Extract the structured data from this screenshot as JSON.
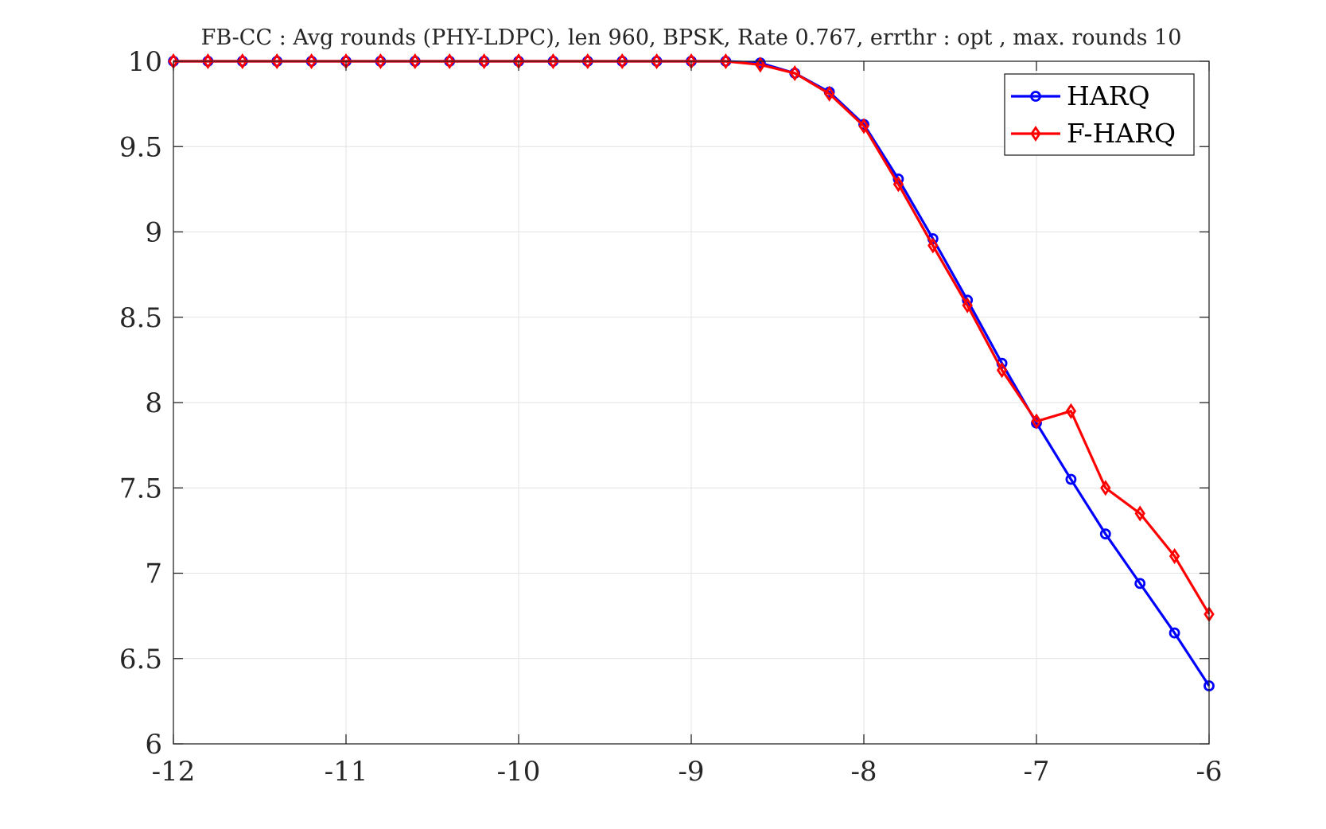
{
  "chart_data": {
    "type": "line",
    "title": "FB-CC : Avg rounds (PHY-LDPC), len 960, BPSK, Rate 0.767, errthr : opt , max. rounds 10",
    "xlabel": "",
    "ylabel": "",
    "xlim": [
      -12,
      -6
    ],
    "ylim": [
      6,
      10
    ],
    "xticks": [
      -12,
      -11,
      -10,
      -9,
      -8,
      -7,
      -6
    ],
    "xtick_labels": [
      "-12",
      "-11",
      "-10",
      "-9",
      "-8",
      "-7",
      "-6"
    ],
    "yticks": [
      6,
      6.5,
      7,
      7.5,
      8,
      8.5,
      9,
      9.5,
      10
    ],
    "ytick_labels": [
      "6",
      "6.5",
      "7",
      "7.5",
      "8",
      "8.5",
      "9",
      "9.5",
      "10"
    ],
    "grid": true,
    "legend_position": "top-right",
    "x": [
      -12,
      -11.8,
      -11.6,
      -11.4,
      -11.2,
      -11,
      -10.8,
      -10.6,
      -10.4,
      -10.2,
      -10,
      -9.8,
      -9.6,
      -9.4,
      -9.2,
      -9,
      -8.8,
      -8.6,
      -8.4,
      -8.2,
      -8,
      -7.8,
      -7.6,
      -7.4,
      -7.2,
      -7,
      -6.8,
      -6.6,
      -6.4,
      -6.2,
      -6
    ],
    "series": [
      {
        "name": "HARQ",
        "color": "#0000ff",
        "marker": "circle",
        "values": [
          10,
          10,
          10,
          10,
          10,
          10,
          10,
          10,
          10,
          10,
          10,
          10,
          10,
          10,
          10,
          10,
          10,
          9.99,
          9.93,
          9.82,
          9.63,
          9.31,
          8.96,
          8.6,
          8.23,
          7.88,
          7.55,
          7.23,
          6.94,
          6.65,
          6.34
        ]
      },
      {
        "name": "F-HARQ",
        "color": "#ff0000",
        "marker": "diamond",
        "values": [
          10,
          10,
          10,
          10,
          10,
          10,
          10,
          10,
          10,
          10,
          10,
          10,
          10,
          10,
          10,
          10,
          10,
          9.98,
          9.93,
          9.81,
          9.62,
          9.28,
          8.92,
          8.57,
          8.19,
          7.89,
          7.95,
          7.5,
          7.35,
          7.1,
          6.76
        ]
      }
    ]
  }
}
